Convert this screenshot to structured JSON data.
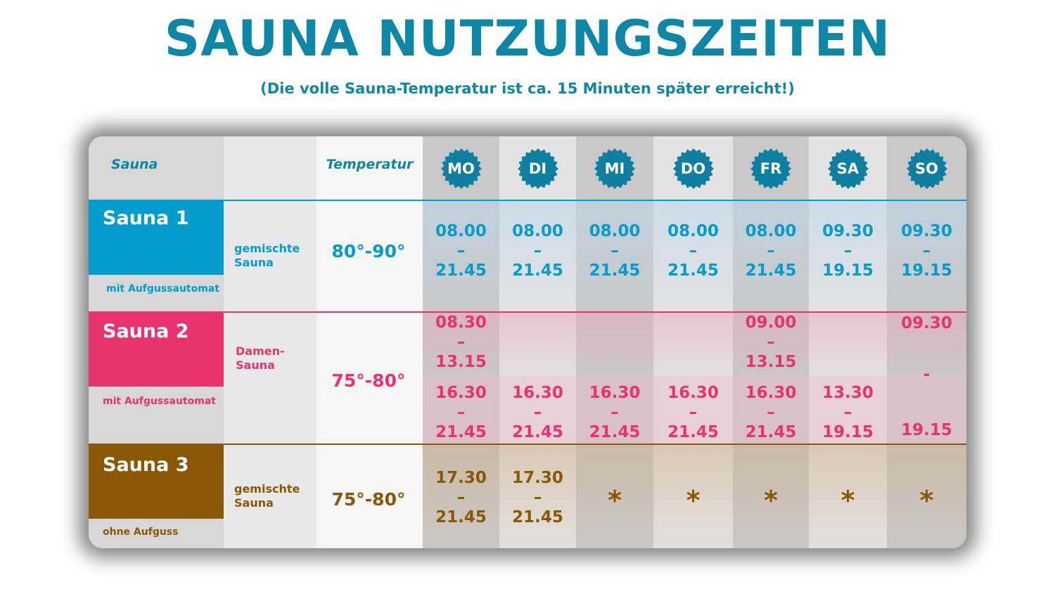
{
  "header": {
    "title": "SAUNA NUTZUNGSZEITEN",
    "subtitle": "(Die volle Sauna-Temperatur ist ca. 15 Minuten später erreicht!)"
  },
  "colors": {
    "title": "#0e86a6",
    "sauna1": "#049ccc",
    "sauna2": "#e8336f",
    "sauna3": "#8a5805",
    "badge": "#0e7fa0"
  },
  "table": {
    "col_sauna": "Sauna",
    "col_temperature": "Temperatur",
    "days": [
      "MO",
      "DI",
      "MI",
      "DO",
      "FR",
      "SA",
      "SO"
    ]
  },
  "saunas": [
    {
      "name": "Sauna 1",
      "subtitle": "mit Aufgussautomat",
      "type_line1": "gemischte",
      "type_line2": "Sauna",
      "temperature": "80°-90°",
      "times": [
        [
          "08.00",
          "–",
          "21.45"
        ],
        [
          "08.00",
          "–",
          "21.45"
        ],
        [
          "08.00",
          "–",
          "21.45"
        ],
        [
          "08.00",
          "–",
          "21.45"
        ],
        [
          "08.00",
          "–",
          "21.45"
        ],
        [
          "09.30",
          "–",
          "19.15"
        ],
        [
          "09.30",
          "–",
          "19.15"
        ]
      ]
    },
    {
      "name": "Sauna 2",
      "subtitle": "mit Aufgussautomat",
      "type_line1": "Damen-",
      "type_line2": "Sauna",
      "temperature": "75°-80°",
      "times_top": [
        [
          "08.30",
          "–",
          "13.15"
        ],
        null,
        null,
        null,
        [
          "09.00",
          "–",
          "13.15"
        ],
        null,
        null
      ],
      "times_bottom": [
        [
          "16.30",
          "–",
          "21.45"
        ],
        [
          "16.30",
          "–",
          "21.45"
        ],
        [
          "16.30",
          "–",
          "21.45"
        ],
        [
          "16.30",
          "–",
          "21.45"
        ],
        [
          "16.30",
          "–",
          "21.45"
        ],
        [
          "13.30",
          "–",
          "19.15"
        ],
        null
      ],
      "sunday": {
        "start": "09.30",
        "dash": "-",
        "end": "19.15"
      }
    },
    {
      "name": "Sauna 3",
      "subtitle": "ohne Aufguss",
      "type_line1": "gemischte",
      "type_line2": "Sauna",
      "temperature": "75°-80°",
      "times": [
        [
          "17.30",
          "–",
          "21.45"
        ],
        [
          "17.30",
          "–",
          "21.45"
        ],
        "*",
        "*",
        "*",
        "*",
        "*"
      ]
    }
  ]
}
